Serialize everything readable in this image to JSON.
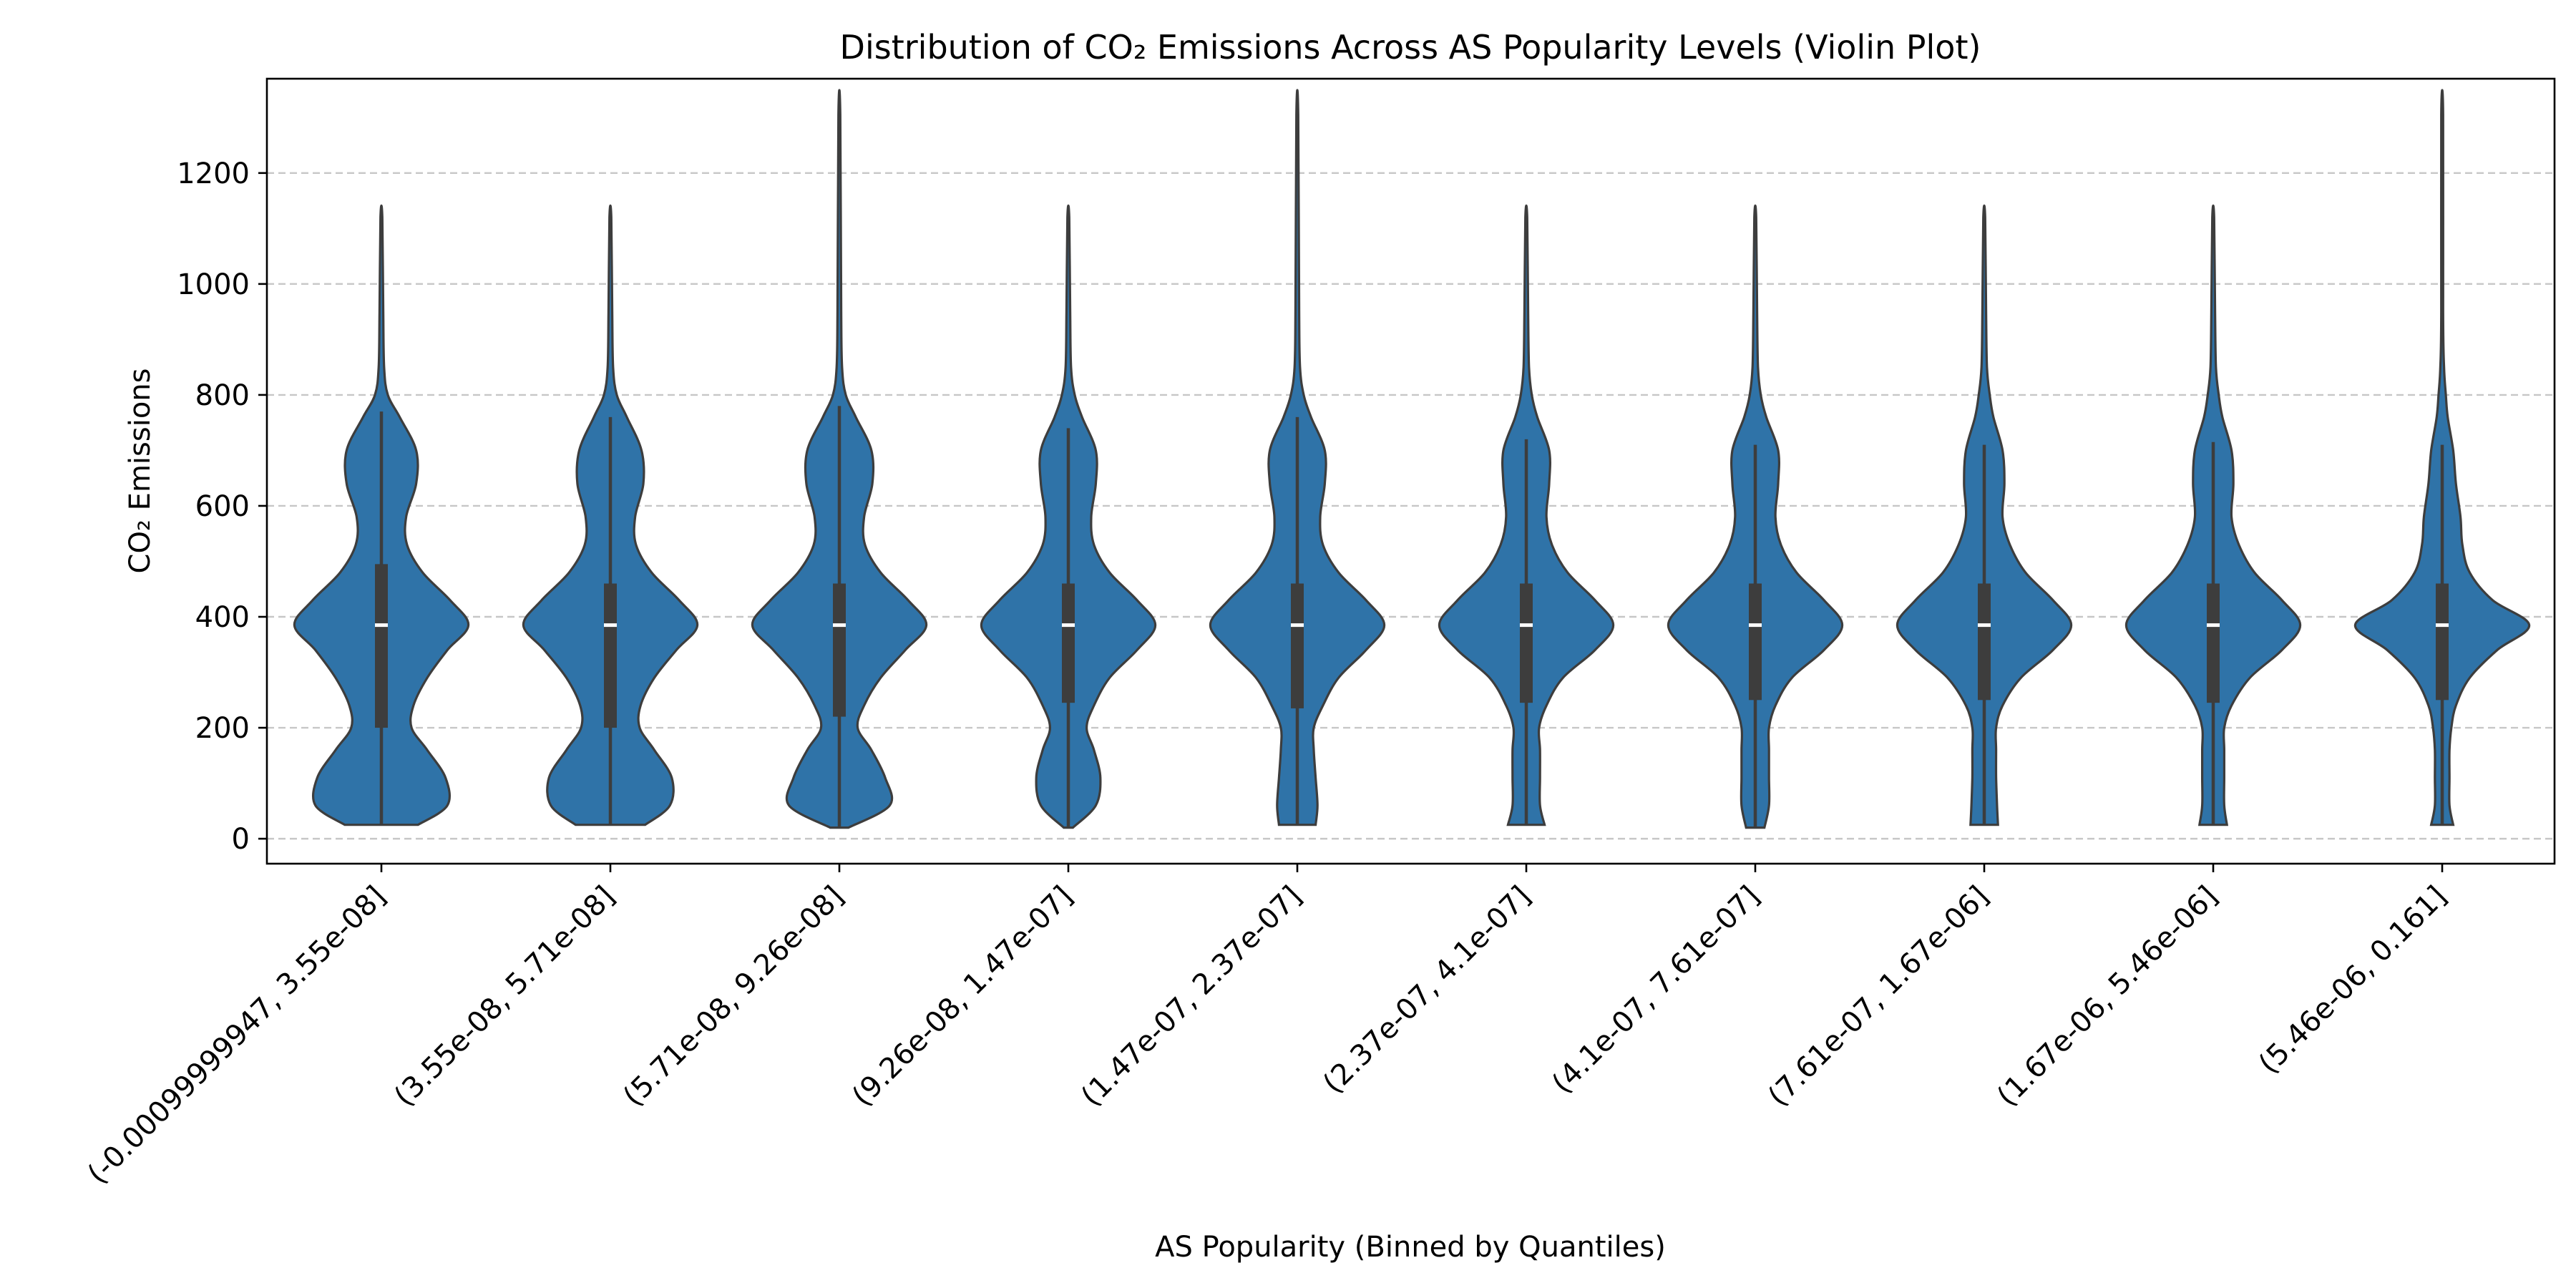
{
  "chart_data": {
    "type": "violin",
    "title": "Distribution of CO₂ Emissions Across AS Popularity Levels (Violin Plot)",
    "xlabel": "AS Popularity (Binned by Quantiles)",
    "ylabel": "CO₂ Emissions",
    "ylim": [
      -45,
      1370
    ],
    "yticks": [
      0,
      200,
      400,
      600,
      800,
      1000,
      1200
    ],
    "grid": "y, dashed",
    "legend": "none",
    "color": "#2f73a8",
    "categories": [
      "(-0.00099999947, 3.55e-08]",
      "(3.55e-08, 5.71e-08]",
      "(5.71e-08, 9.26e-08]",
      "(9.26e-08, 1.47e-07]",
      "(1.47e-07, 2.37e-07]",
      "(2.37e-07, 4.1e-07]",
      "(4.1e-07, 7.61e-07]",
      "(7.61e-07, 1.67e-06]",
      "(1.67e-06, 5.46e-06]",
      "(5.46e-06, 0.161]"
    ],
    "violins": [
      {
        "min": 25,
        "max": 1120,
        "q1": 200,
        "median": 385,
        "q3": 495,
        "whisker_low": 25,
        "whisker_high": 770,
        "density": [
          [
            25,
            0.4
          ],
          [
            60,
            0.72
          ],
          [
            110,
            0.7
          ],
          [
            160,
            0.5
          ],
          [
            200,
            0.33
          ],
          [
            240,
            0.35
          ],
          [
            290,
            0.5
          ],
          [
            340,
            0.72
          ],
          [
            385,
            0.95
          ],
          [
            430,
            0.75
          ],
          [
            480,
            0.45
          ],
          [
            530,
            0.28
          ],
          [
            580,
            0.27
          ],
          [
            640,
            0.38
          ],
          [
            700,
            0.38
          ],
          [
            760,
            0.2
          ],
          [
            800,
            0.07
          ],
          [
            850,
            0.03
          ],
          [
            950,
            0.02
          ],
          [
            1120,
            0.01
          ]
        ]
      },
      {
        "min": 25,
        "max": 1120,
        "q1": 200,
        "median": 385,
        "q3": 460,
        "whisker_low": 25,
        "whisker_high": 760,
        "density": [
          [
            25,
            0.38
          ],
          [
            60,
            0.65
          ],
          [
            110,
            0.67
          ],
          [
            160,
            0.48
          ],
          [
            200,
            0.32
          ],
          [
            240,
            0.33
          ],
          [
            290,
            0.48
          ],
          [
            340,
            0.72
          ],
          [
            385,
            0.95
          ],
          [
            430,
            0.75
          ],
          [
            480,
            0.45
          ],
          [
            530,
            0.28
          ],
          [
            580,
            0.27
          ],
          [
            640,
            0.36
          ],
          [
            700,
            0.34
          ],
          [
            760,
            0.18
          ],
          [
            800,
            0.07
          ],
          [
            850,
            0.03
          ],
          [
            950,
            0.02
          ],
          [
            1120,
            0.01
          ]
        ]
      },
      {
        "min": 20,
        "max": 1305,
        "q1": 220,
        "median": 385,
        "q3": 460,
        "whisker_low": 20,
        "whisker_high": 780,
        "density": [
          [
            20,
            0.1
          ],
          [
            60,
            0.55
          ],
          [
            110,
            0.5
          ],
          [
            160,
            0.35
          ],
          [
            200,
            0.2
          ],
          [
            240,
            0.27
          ],
          [
            290,
            0.45
          ],
          [
            340,
            0.72
          ],
          [
            385,
            0.95
          ],
          [
            430,
            0.75
          ],
          [
            480,
            0.45
          ],
          [
            530,
            0.28
          ],
          [
            580,
            0.27
          ],
          [
            640,
            0.36
          ],
          [
            700,
            0.35
          ],
          [
            760,
            0.18
          ],
          [
            800,
            0.07
          ],
          [
            850,
            0.03
          ],
          [
            950,
            0.02
          ],
          [
            1305,
            0.01
          ]
        ]
      },
      {
        "min": 20,
        "max": 1120,
        "q1": 245,
        "median": 385,
        "q3": 460,
        "whisker_low": 20,
        "whisker_high": 740,
        "density": [
          [
            20,
            0.05
          ],
          [
            60,
            0.3
          ],
          [
            110,
            0.35
          ],
          [
            160,
            0.28
          ],
          [
            200,
            0.2
          ],
          [
            240,
            0.28
          ],
          [
            290,
            0.45
          ],
          [
            340,
            0.75
          ],
          [
            385,
            0.95
          ],
          [
            430,
            0.75
          ],
          [
            480,
            0.45
          ],
          [
            530,
            0.28
          ],
          [
            580,
            0.25
          ],
          [
            640,
            0.3
          ],
          [
            700,
            0.3
          ],
          [
            760,
            0.15
          ],
          [
            800,
            0.07
          ],
          [
            850,
            0.03
          ],
          [
            950,
            0.02
          ],
          [
            1120,
            0.01
          ]
        ]
      },
      {
        "min": 25,
        "max": 1305,
        "q1": 235,
        "median": 385,
        "q3": 460,
        "whisker_low": 25,
        "whisker_high": 760,
        "density": [
          [
            25,
            0.2
          ],
          [
            60,
            0.22
          ],
          [
            110,
            0.2
          ],
          [
            160,
            0.18
          ],
          [
            200,
            0.18
          ],
          [
            240,
            0.28
          ],
          [
            290,
            0.45
          ],
          [
            340,
            0.75
          ],
          [
            385,
            0.95
          ],
          [
            430,
            0.75
          ],
          [
            480,
            0.45
          ],
          [
            530,
            0.28
          ],
          [
            580,
            0.25
          ],
          [
            640,
            0.3
          ],
          [
            700,
            0.3
          ],
          [
            760,
            0.15
          ],
          [
            800,
            0.07
          ],
          [
            850,
            0.03
          ],
          [
            950,
            0.02
          ],
          [
            1305,
            0.01
          ]
        ]
      },
      {
        "min": 25,
        "max": 1120,
        "q1": 245,
        "median": 385,
        "q3": 460,
        "whisker_low": 25,
        "whisker_high": 720,
        "density": [
          [
            25,
            0.2
          ],
          [
            60,
            0.15
          ],
          [
            110,
            0.15
          ],
          [
            160,
            0.15
          ],
          [
            200,
            0.14
          ],
          [
            240,
            0.22
          ],
          [
            290,
            0.4
          ],
          [
            340,
            0.75
          ],
          [
            385,
            0.95
          ],
          [
            430,
            0.75
          ],
          [
            480,
            0.45
          ],
          [
            530,
            0.28
          ],
          [
            580,
            0.22
          ],
          [
            640,
            0.25
          ],
          [
            700,
            0.25
          ],
          [
            760,
            0.12
          ],
          [
            800,
            0.06
          ],
          [
            850,
            0.03
          ],
          [
            950,
            0.02
          ],
          [
            1120,
            0.01
          ]
        ]
      },
      {
        "min": 20,
        "max": 1120,
        "q1": 250,
        "median": 385,
        "q3": 460,
        "whisker_low": 20,
        "whisker_high": 710,
        "density": [
          [
            20,
            0.1
          ],
          [
            60,
            0.15
          ],
          [
            110,
            0.15
          ],
          [
            160,
            0.15
          ],
          [
            200,
            0.15
          ],
          [
            240,
            0.22
          ],
          [
            290,
            0.4
          ],
          [
            340,
            0.75
          ],
          [
            385,
            0.95
          ],
          [
            430,
            0.75
          ],
          [
            480,
            0.45
          ],
          [
            530,
            0.28
          ],
          [
            580,
            0.22
          ],
          [
            640,
            0.25
          ],
          [
            700,
            0.25
          ],
          [
            760,
            0.12
          ],
          [
            800,
            0.06
          ],
          [
            850,
            0.03
          ],
          [
            950,
            0.02
          ],
          [
            1120,
            0.01
          ]
        ]
      },
      {
        "min": 25,
        "max": 1120,
        "q1": 250,
        "median": 385,
        "q3": 460,
        "whisker_low": 25,
        "whisker_high": 710,
        "density": [
          [
            25,
            0.15
          ],
          [
            60,
            0.14
          ],
          [
            110,
            0.13
          ],
          [
            160,
            0.13
          ],
          [
            200,
            0.13
          ],
          [
            240,
            0.2
          ],
          [
            290,
            0.4
          ],
          [
            340,
            0.75
          ],
          [
            385,
            0.95
          ],
          [
            430,
            0.75
          ],
          [
            480,
            0.45
          ],
          [
            530,
            0.28
          ],
          [
            580,
            0.2
          ],
          [
            640,
            0.22
          ],
          [
            700,
            0.2
          ],
          [
            760,
            0.1
          ],
          [
            800,
            0.06
          ],
          [
            850,
            0.03
          ],
          [
            950,
            0.02
          ],
          [
            1120,
            0.01
          ]
        ]
      },
      {
        "min": 25,
        "max": 1120,
        "q1": 245,
        "median": 385,
        "q3": 460,
        "whisker_low": 25,
        "whisker_high": 715,
        "density": [
          [
            25,
            0.15
          ],
          [
            60,
            0.12
          ],
          [
            110,
            0.12
          ],
          [
            160,
            0.12
          ],
          [
            200,
            0.12
          ],
          [
            240,
            0.2
          ],
          [
            290,
            0.4
          ],
          [
            340,
            0.75
          ],
          [
            385,
            0.95
          ],
          [
            430,
            0.75
          ],
          [
            480,
            0.45
          ],
          [
            530,
            0.28
          ],
          [
            580,
            0.2
          ],
          [
            640,
            0.22
          ],
          [
            700,
            0.2
          ],
          [
            760,
            0.1
          ],
          [
            800,
            0.06
          ],
          [
            850,
            0.03
          ],
          [
            950,
            0.02
          ],
          [
            1120,
            0.01
          ]
        ]
      },
      {
        "min": 25,
        "max": 1305,
        "q1": 250,
        "median": 385,
        "q3": 460,
        "whisker_low": 25,
        "whisker_high": 710,
        "density": [
          [
            25,
            0.12
          ],
          [
            60,
            0.08
          ],
          [
            110,
            0.08
          ],
          [
            160,
            0.08
          ],
          [
            200,
            0.1
          ],
          [
            240,
            0.15
          ],
          [
            290,
            0.3
          ],
          [
            340,
            0.6
          ],
          [
            385,
            0.95
          ],
          [
            430,
            0.55
          ],
          [
            480,
            0.3
          ],
          [
            530,
            0.22
          ],
          [
            580,
            0.2
          ],
          [
            640,
            0.15
          ],
          [
            700,
            0.12
          ],
          [
            760,
            0.06
          ],
          [
            800,
            0.04
          ],
          [
            850,
            0.02
          ],
          [
            950,
            0.01
          ],
          [
            1305,
            0.01
          ]
        ]
      }
    ]
  }
}
